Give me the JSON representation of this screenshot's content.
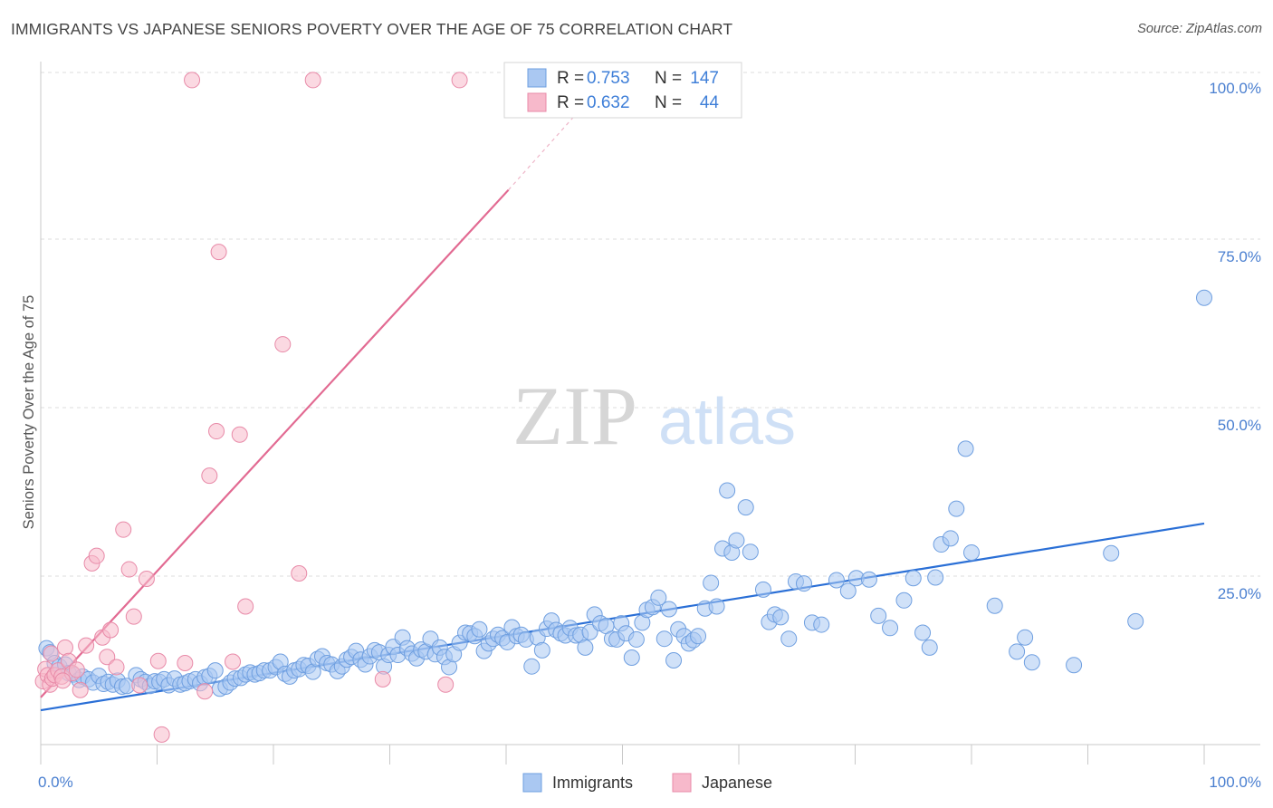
{
  "title": "IMMIGRANTS VS JAPANESE SENIORS POVERTY OVER THE AGE OF 75 CORRELATION CHART",
  "source": "Source: ZipAtlas.com",
  "watermark": {
    "zip": "ZIP",
    "atlas": "atlas"
  },
  "legend": {
    "r_label": "R =",
    "n_label": "N =",
    "rows": [
      {
        "r": "0.753",
        "n": "147",
        "color": "#aac8f2",
        "stroke": "#6f9fe0"
      },
      {
        "r": "0.632",
        "n": "44",
        "color": "#f7b9cb",
        "stroke": "#e88aa8"
      }
    ]
  },
  "chart_data": {
    "type": "scatter",
    "title": "IMMIGRANTS VS JAPANESE SENIORS POVERTY OVER THE AGE OF 75 CORRELATION CHART",
    "xlabel": "",
    "ylabel": "Seniors Poverty Over the Age of 75",
    "xlim": [
      0,
      100
    ],
    "ylim": [
      0,
      100
    ],
    "x_ticks": [
      "0.0%",
      "100.0%"
    ],
    "y_ticks": [
      "25.0%",
      "50.0%",
      "75.0%",
      "100.0%"
    ],
    "y_tick_values": [
      25,
      50,
      75,
      100
    ],
    "grid": true,
    "legend_position": "top-center",
    "series": [
      {
        "name": "Immigrants",
        "color": "#aac8f2",
        "stroke": "#6f9fe0",
        "trend": {
          "x": [
            0,
            100
          ],
          "y": [
            5.1,
            32.8
          ],
          "color": "#2a6fd6"
        },
        "points": [
          [
            0.5,
            14.3
          ],
          [
            0.8,
            13.7
          ],
          [
            1.2,
            12.1
          ],
          [
            1.6,
            11.6
          ],
          [
            2.1,
            11.9
          ],
          [
            2.4,
            10.6
          ],
          [
            2.8,
            10.4
          ],
          [
            3.3,
            9.6
          ],
          [
            3.6,
            10.1
          ],
          [
            4.1,
            9.7
          ],
          [
            4.5,
            9.2
          ],
          [
            5.0,
            10.2
          ],
          [
            5.4,
            9.0
          ],
          [
            5.8,
            9.3
          ],
          [
            6.2,
            8.9
          ],
          [
            6.6,
            9.5
          ],
          [
            7.0,
            8.6
          ],
          [
            7.4,
            8.7
          ],
          [
            8.2,
            10.3
          ],
          [
            8.6,
            9.7
          ],
          [
            9.0,
            9.3
          ],
          [
            9.4,
            8.7
          ],
          [
            9.8,
            9.4
          ],
          [
            10.2,
            9.3
          ],
          [
            10.6,
            9.7
          ],
          [
            11.0,
            8.8
          ],
          [
            11.5,
            9.8
          ],
          [
            12.0,
            8.9
          ],
          [
            12.4,
            9.1
          ],
          [
            12.8,
            9.4
          ],
          [
            13.3,
            9.7
          ],
          [
            13.7,
            9.1
          ],
          [
            14.1,
            10.0
          ],
          [
            14.5,
            10.2
          ],
          [
            15.0,
            11.0
          ],
          [
            15.4,
            8.3
          ],
          [
            15.9,
            8.6
          ],
          [
            16.3,
            9.2
          ],
          [
            16.7,
            9.8
          ],
          [
            17.2,
            9.9
          ],
          [
            17.6,
            10.4
          ],
          [
            18.0,
            10.7
          ],
          [
            18.4,
            10.4
          ],
          [
            18.8,
            10.6
          ],
          [
            19.2,
            11.0
          ],
          [
            19.7,
            11.0
          ],
          [
            20.2,
            11.5
          ],
          [
            20.6,
            12.3
          ],
          [
            21.0,
            10.5
          ],
          [
            21.4,
            10.1
          ],
          [
            21.8,
            11.0
          ],
          [
            22.2,
            11.2
          ],
          [
            22.6,
            11.8
          ],
          [
            23.0,
            11.7
          ],
          [
            23.4,
            10.8
          ],
          [
            23.8,
            12.7
          ],
          [
            24.2,
            13.1
          ],
          [
            24.6,
            12.1
          ],
          [
            25.0,
            11.9
          ],
          [
            25.5,
            10.9
          ],
          [
            25.9,
            11.6
          ],
          [
            26.3,
            12.6
          ],
          [
            26.7,
            13.0
          ],
          [
            27.1,
            13.9
          ],
          [
            27.5,
            12.6
          ],
          [
            27.9,
            11.9
          ],
          [
            28.3,
            13.1
          ],
          [
            28.7,
            14.0
          ],
          [
            29.1,
            13.7
          ],
          [
            29.5,
            11.6
          ],
          [
            29.9,
            13.3
          ],
          [
            30.3,
            14.5
          ],
          [
            30.7,
            13.3
          ],
          [
            31.1,
            15.9
          ],
          [
            31.5,
            14.3
          ],
          [
            31.9,
            13.5
          ],
          [
            32.3,
            12.8
          ],
          [
            32.7,
            14.1
          ],
          [
            33.1,
            13.8
          ],
          [
            33.5,
            15.7
          ],
          [
            33.9,
            13.4
          ],
          [
            34.3,
            14.4
          ],
          [
            34.7,
            13.0
          ],
          [
            35.1,
            11.5
          ],
          [
            35.5,
            13.4
          ],
          [
            36.0,
            15.1
          ],
          [
            36.5,
            16.6
          ],
          [
            36.9,
            16.5
          ],
          [
            37.3,
            16.1
          ],
          [
            37.7,
            17.1
          ],
          [
            38.1,
            13.9
          ],
          [
            38.5,
            15.0
          ],
          [
            38.9,
            15.7
          ],
          [
            39.3,
            16.3
          ],
          [
            39.7,
            15.8
          ],
          [
            40.1,
            15.2
          ],
          [
            40.5,
            17.4
          ],
          [
            40.9,
            16.1
          ],
          [
            41.3,
            16.3
          ],
          [
            41.7,
            15.6
          ],
          [
            42.2,
            11.6
          ],
          [
            42.7,
            15.9
          ],
          [
            43.1,
            14.0
          ],
          [
            43.5,
            17.2
          ],
          [
            43.9,
            18.4
          ],
          [
            44.3,
            17.0
          ],
          [
            44.7,
            16.5
          ],
          [
            45.1,
            16.2
          ],
          [
            45.5,
            17.3
          ],
          [
            46.0,
            16.2
          ],
          [
            46.4,
            16.3
          ],
          [
            46.8,
            14.4
          ],
          [
            47.2,
            16.7
          ],
          [
            47.6,
            19.3
          ],
          [
            48.1,
            18.0
          ],
          [
            48.6,
            17.6
          ],
          [
            49.1,
            15.7
          ],
          [
            49.5,
            15.6
          ],
          [
            49.9,
            18.0
          ],
          [
            50.3,
            16.5
          ],
          [
            50.8,
            12.9
          ],
          [
            51.2,
            15.6
          ],
          [
            51.7,
            18.1
          ],
          [
            52.1,
            20.0
          ],
          [
            52.6,
            20.4
          ],
          [
            53.1,
            21.8
          ],
          [
            53.6,
            15.7
          ],
          [
            54.0,
            20.1
          ],
          [
            54.4,
            12.5
          ],
          [
            54.8,
            17.1
          ],
          [
            55.3,
            16.1
          ],
          [
            55.7,
            15.0
          ],
          [
            56.1,
            15.5
          ],
          [
            56.5,
            16.1
          ],
          [
            57.1,
            20.2
          ],
          [
            57.6,
            24.0
          ],
          [
            58.1,
            20.5
          ],
          [
            58.6,
            29.1
          ],
          [
            59.0,
            37.7
          ],
          [
            59.4,
            28.5
          ],
          [
            59.8,
            30.3
          ],
          [
            60.6,
            35.2
          ],
          [
            61.0,
            28.6
          ],
          [
            62.1,
            23.0
          ],
          [
            62.6,
            18.2
          ],
          [
            63.1,
            19.3
          ],
          [
            63.6,
            18.9
          ],
          [
            64.3,
            15.7
          ],
          [
            64.9,
            24.2
          ],
          [
            65.6,
            23.9
          ],
          [
            66.3,
            18.1
          ],
          [
            67.1,
            17.8
          ],
          [
            68.4,
            24.4
          ],
          [
            69.4,
            22.8
          ],
          [
            70.1,
            24.7
          ],
          [
            71.2,
            24.5
          ],
          [
            72.0,
            19.1
          ],
          [
            73.0,
            17.3
          ],
          [
            74.2,
            21.4
          ],
          [
            75.0,
            24.7
          ],
          [
            75.8,
            16.6
          ],
          [
            76.4,
            14.4
          ],
          [
            76.9,
            24.8
          ],
          [
            77.4,
            29.7
          ],
          [
            78.2,
            30.6
          ],
          [
            78.7,
            35.0
          ],
          [
            79.5,
            43.9
          ],
          [
            80.0,
            28.5
          ],
          [
            82.0,
            20.6
          ],
          [
            83.9,
            13.8
          ],
          [
            84.6,
            15.9
          ],
          [
            85.2,
            12.2
          ],
          [
            88.8,
            11.8
          ],
          [
            92.0,
            28.4
          ],
          [
            94.1,
            18.3
          ],
          [
            100.0,
            66.3
          ]
        ]
      },
      {
        "name": "Japanese",
        "color": "#f7b9cb",
        "stroke": "#e88aa8",
        "trend": {
          "x": [
            0,
            40.2
          ],
          "y": [
            7.0,
            82.3
          ],
          "dashed_to": {
            "x": 46.4,
            "y": 94.3
          },
          "color": "#e26a92"
        },
        "points": [
          [
            0.2,
            9.4
          ],
          [
            0.4,
            11.2
          ],
          [
            0.6,
            10.3
          ],
          [
            0.8,
            8.9
          ],
          [
            1.0,
            9.8
          ],
          [
            1.2,
            10.3
          ],
          [
            1.5,
            11.0
          ],
          [
            1.8,
            10.1
          ],
          [
            2.1,
            14.4
          ],
          [
            2.4,
            12.4
          ],
          [
            2.7,
            10.6
          ],
          [
            3.1,
            11.1
          ],
          [
            3.4,
            8.1
          ],
          [
            3.9,
            14.7
          ],
          [
            4.4,
            26.9
          ],
          [
            4.8,
            28.0
          ],
          [
            5.3,
            15.9
          ],
          [
            5.7,
            13.0
          ],
          [
            6.0,
            17.0
          ],
          [
            6.5,
            11.5
          ],
          [
            7.1,
            31.9
          ],
          [
            7.6,
            26.0
          ],
          [
            8.0,
            19.0
          ],
          [
            8.5,
            8.8
          ],
          [
            9.1,
            24.6
          ],
          [
            10.1,
            12.4
          ],
          [
            10.4,
            1.5
          ],
          [
            12.4,
            12.1
          ],
          [
            13.0,
            98.6
          ],
          [
            14.1,
            7.9
          ],
          [
            14.5,
            39.9
          ],
          [
            15.1,
            46.5
          ],
          [
            15.3,
            73.1
          ],
          [
            16.5,
            12.3
          ],
          [
            17.1,
            46.0
          ],
          [
            17.6,
            20.5
          ],
          [
            20.8,
            59.4
          ],
          [
            22.2,
            25.4
          ],
          [
            23.4,
            98.6
          ],
          [
            29.4,
            9.7
          ],
          [
            34.8,
            8.9
          ],
          [
            36.0,
            98.6
          ],
          [
            0.9,
            13.5
          ],
          [
            1.9,
            9.5
          ]
        ]
      }
    ]
  }
}
